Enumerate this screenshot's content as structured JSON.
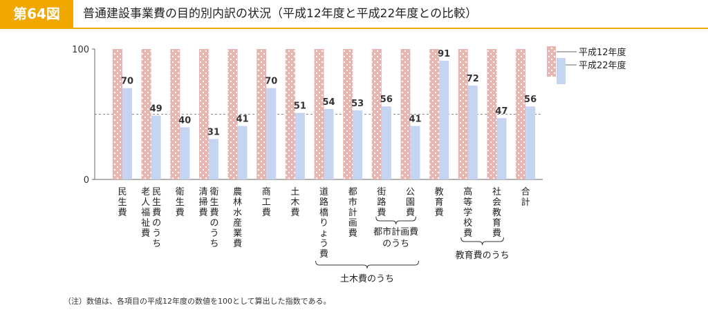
{
  "header": {
    "figure_label": "第64図",
    "title": "普通建設事業費の目的別内訳の状況（平成12年度と平成22年度との比較）"
  },
  "note": "（注）数値は、各項目の平成12年度の数値を100として算出した指数である。",
  "colors": {
    "accent": "#f0a800",
    "h12_fill": "#e8b4b0",
    "h12_dots": "#ffffff",
    "h22_fill": "#c5d5f1",
    "axis": "#666666"
  },
  "group_labels": {
    "toshi": [
      "都市計画費",
      "のうち"
    ],
    "kyoiku": "教育費のうち",
    "doboku": "土木費のうち"
  },
  "chart_data": {
    "type": "bar",
    "title": "",
    "xlabel": "",
    "ylabel": "",
    "ylim": [
      0,
      100
    ],
    "y_ticks": [
      0,
      100
    ],
    "reference_line": 50,
    "legend": "top-right",
    "categories": [
      [
        "民生費"
      ],
      [
        "民生費のうち",
        "老人福祉費"
      ],
      [
        "衛生費"
      ],
      [
        "衛生費のうち",
        "清掃費"
      ],
      [
        "農林水産業費"
      ],
      [
        "商工費"
      ],
      [
        "土木費"
      ],
      [
        "道路橋りょう費"
      ],
      [
        "都市計画費"
      ],
      [
        "街路費"
      ],
      [
        "公園費"
      ],
      [
        "教育費"
      ],
      [
        "高等学校費"
      ],
      [
        "社会教育費"
      ],
      [
        "合計"
      ]
    ],
    "series": [
      {
        "name": "平成12年度",
        "values": [
          100,
          100,
          100,
          100,
          100,
          100,
          100,
          100,
          100,
          100,
          100,
          100,
          100,
          100,
          100
        ]
      },
      {
        "name": "平成22年度",
        "values": [
          70,
          49,
          40,
          31,
          41,
          70,
          51,
          54,
          53,
          56,
          41,
          91,
          72,
          47,
          56
        ]
      }
    ]
  }
}
